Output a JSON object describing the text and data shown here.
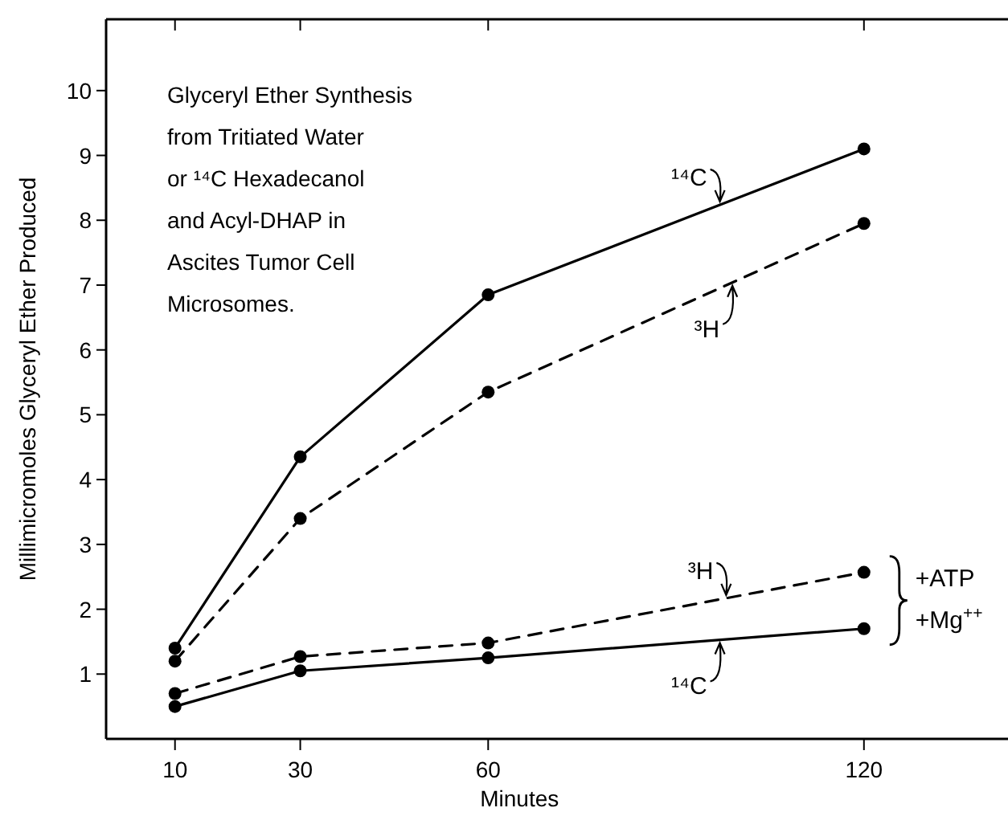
{
  "chart_data": {
    "type": "line",
    "title": "Glyceryl Ether Synthesis\nfrom Tritiated Water\nor ¹⁴C Hexadecanol\nand Acyl-DHAP in\nAscites Tumor Cell\nMicrosomes.",
    "xlabel": "Minutes",
    "ylabel": "Millimicromoles Glyceryl Ether Produced",
    "x": [
      10,
      30,
      60,
      120
    ],
    "xlim": [
      -1,
      143
    ],
    "xticks": [
      10,
      30,
      60,
      120
    ],
    "ylim": [
      0,
      11.1
    ],
    "yticks": [
      1,
      2,
      3,
      4,
      5,
      6,
      7,
      8,
      9,
      10
    ],
    "grid": false,
    "marker": "circle",
    "series": [
      {
        "color": "#000000",
        "line_style": "solid",
        "values": [
          1.4,
          4.35,
          6.85,
          9.1
        ]
      },
      {
        "color": "#000000",
        "line_style": "dashed",
        "values": [
          1.2,
          3.4,
          5.35,
          7.95
        ]
      },
      {
        "color": "#000000",
        "line_style": "dashed",
        "values": [
          0.7,
          1.27,
          1.48,
          2.57
        ]
      },
      {
        "color": "#000000",
        "line_style": "solid",
        "values": [
          0.5,
          1.05,
          1.25,
          1.7
        ]
      }
    ],
    "annotations": [
      {
        "text": "¹⁴C",
        "x": 97,
        "y": 8.24
      },
      {
        "text": "³H",
        "x": 99,
        "y": 7.04
      },
      {
        "text": "³H",
        "x": 98,
        "y": 2.17
      },
      {
        "text": "¹⁴C",
        "x": 97,
        "y": 1.53
      },
      "+ATP\n+Mg$^{++}$"
    ]
  }
}
